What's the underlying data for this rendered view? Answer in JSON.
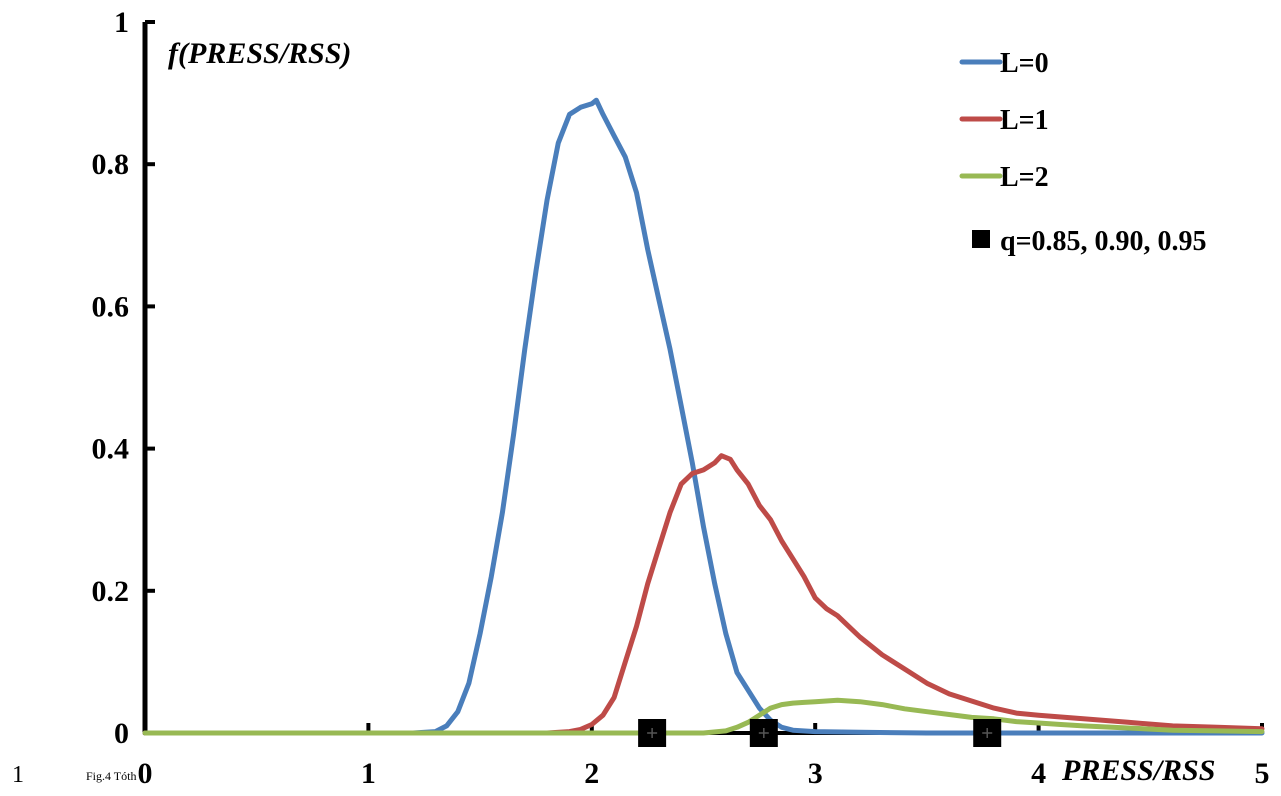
{
  "page": {
    "line_number": "1",
    "caption": "Fig.4 Tóth"
  },
  "chart_data": {
    "type": "line",
    "title": "",
    "ylabel": "f(PRESS/RSS)",
    "xlabel": "PRESS/RSS",
    "xlim": [
      0,
      5
    ],
    "ylim": [
      0,
      1
    ],
    "x_ticks": [
      0,
      1,
      2,
      3,
      4,
      5
    ],
    "x_tick_labels": [
      "0",
      "1",
      "2",
      "3",
      "4",
      "5"
    ],
    "y_ticks": [
      0,
      0.2,
      0.4,
      0.6,
      0.8,
      1
    ],
    "y_tick_labels": [
      "0",
      "0.2",
      "0.4",
      "0.6",
      "0.8",
      "1"
    ],
    "grid": false,
    "legend_position": "top-right",
    "series": [
      {
        "name": "L=0",
        "color": "#4a7ebb",
        "x": [
          0,
          1.0,
          1.2,
          1.3,
          1.35,
          1.4,
          1.45,
          1.5,
          1.55,
          1.6,
          1.65,
          1.7,
          1.75,
          1.8,
          1.85,
          1.9,
          1.95,
          2.0,
          2.02,
          2.05,
          2.1,
          2.15,
          2.2,
          2.25,
          2.3,
          2.35,
          2.4,
          2.45,
          2.5,
          2.55,
          2.6,
          2.65,
          2.7,
          2.75,
          2.8,
          2.85,
          2.9,
          3.0,
          3.2,
          3.5,
          4.0,
          5.0
        ],
        "y": [
          0,
          0,
          0,
          0.002,
          0.01,
          0.03,
          0.07,
          0.14,
          0.22,
          0.31,
          0.42,
          0.54,
          0.65,
          0.75,
          0.83,
          0.87,
          0.88,
          0.885,
          0.89,
          0.87,
          0.84,
          0.81,
          0.76,
          0.68,
          0.61,
          0.54,
          0.46,
          0.38,
          0.29,
          0.21,
          0.14,
          0.085,
          0.06,
          0.035,
          0.018,
          0.008,
          0.004,
          0.002,
          0.001,
          0.0,
          0.0,
          0.0
        ]
      },
      {
        "name": "L=1",
        "color": "#be4b48",
        "x": [
          0,
          1.8,
          1.9,
          1.95,
          2.0,
          2.05,
          2.1,
          2.15,
          2.2,
          2.25,
          2.3,
          2.35,
          2.4,
          2.45,
          2.5,
          2.55,
          2.58,
          2.62,
          2.65,
          2.7,
          2.75,
          2.8,
          2.85,
          2.9,
          2.95,
          3.0,
          3.05,
          3.1,
          3.2,
          3.3,
          3.4,
          3.5,
          3.6,
          3.7,
          3.8,
          3.9,
          4.0,
          4.2,
          4.4,
          4.6,
          4.8,
          5.0
        ],
        "y": [
          0,
          0,
          0.002,
          0.005,
          0.012,
          0.025,
          0.05,
          0.1,
          0.15,
          0.21,
          0.26,
          0.31,
          0.35,
          0.365,
          0.37,
          0.38,
          0.39,
          0.385,
          0.37,
          0.35,
          0.32,
          0.3,
          0.27,
          0.245,
          0.22,
          0.19,
          0.175,
          0.165,
          0.135,
          0.11,
          0.09,
          0.07,
          0.055,
          0.045,
          0.035,
          0.028,
          0.025,
          0.02,
          0.015,
          0.01,
          0.008,
          0.006
        ]
      },
      {
        "name": "L=2",
        "color": "#98b954",
        "x": [
          0,
          2.5,
          2.6,
          2.65,
          2.7,
          2.75,
          2.8,
          2.85,
          2.9,
          2.95,
          3.0,
          3.05,
          3.1,
          3.15,
          3.2,
          3.3,
          3.4,
          3.5,
          3.6,
          3.7,
          3.8,
          3.9,
          4.0,
          4.1,
          4.2,
          4.4,
          4.6,
          4.8,
          5.0
        ],
        "y": [
          0,
          0,
          0.003,
          0.008,
          0.015,
          0.025,
          0.035,
          0.04,
          0.042,
          0.043,
          0.044,
          0.045,
          0.046,
          0.045,
          0.044,
          0.04,
          0.034,
          0.03,
          0.026,
          0.022,
          0.02,
          0.016,
          0.014,
          0.012,
          0.01,
          0.007,
          0.004,
          0.003,
          0.002
        ]
      }
    ],
    "quantiles": {
      "name": "q=0.85, 0.90, 0.95",
      "color": "#000000",
      "x": [
        2.27,
        2.77,
        3.77
      ],
      "y": [
        0,
        0,
        0
      ]
    }
  }
}
